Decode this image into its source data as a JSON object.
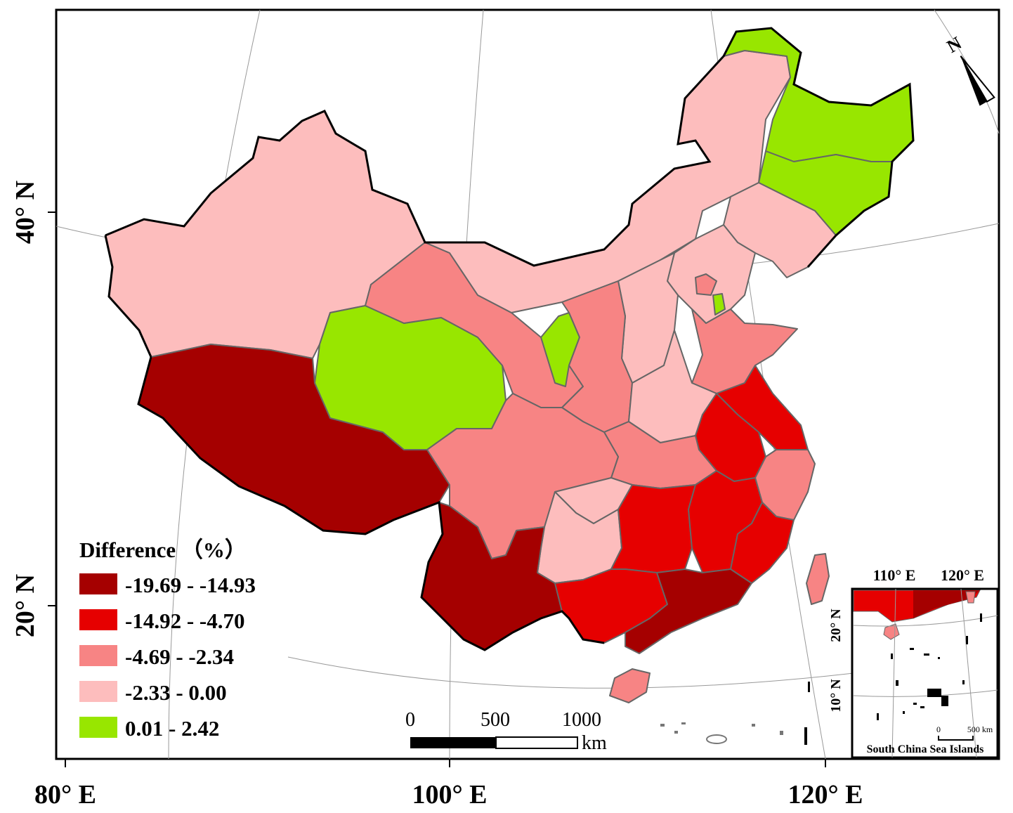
{
  "axes": {
    "x_ticks": [
      "80° E",
      "100° E",
      "120° E"
    ],
    "y_ticks": [
      "40° N",
      "20° N"
    ]
  },
  "legend": {
    "title": "Difference （%）",
    "classes": [
      {
        "label": "-19.69 - -14.93",
        "color": "#a50000"
      },
      {
        "label": "-14.92 - -4.70",
        "color": "#e60000"
      },
      {
        "label": "-4.69 - -2.34",
        "color": "#f78484"
      },
      {
        "label": "-2.33 - 0.00",
        "color": "#fdbdbd"
      },
      {
        "label": "0.01 - 2.42",
        "color": "#98e600"
      }
    ]
  },
  "scale_bar": {
    "ticks": [
      "0",
      "500",
      "1000"
    ],
    "unit": "km"
  },
  "north_arrow": {
    "label": "N"
  },
  "inset": {
    "title": "South China Sea Islands",
    "x_ticks": [
      "110° E",
      "120° E"
    ],
    "y_ticks": [
      "20° N",
      "10° N"
    ],
    "scale_ticks": [
      "0",
      "500 km"
    ]
  }
}
